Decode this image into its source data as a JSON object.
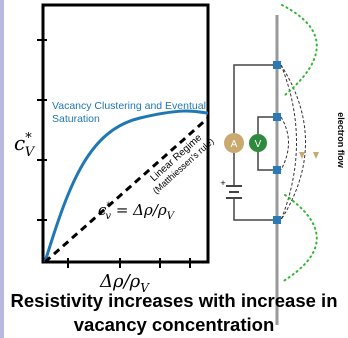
{
  "plot": {
    "y_label": "c",
    "y_label_sup": "*",
    "y_label_sub": "V",
    "x_label": "Δρ/ρ",
    "x_label_sub": "V",
    "saturation_label": [
      "Vacancy Clustering and Eventual",
      "Saturation"
    ],
    "linear_label": [
      "Linear Regime",
      "(Matthiessen's rule)"
    ],
    "equation": {
      "lhs": "c",
      "lhs_sup": "*",
      "lhs_sub": "v",
      "rhs": " = Δρ/ρ",
      "rhs_sub": "V"
    }
  },
  "circuit": {
    "ammeter": "A",
    "voltmeter": "V",
    "battery_plus": "+",
    "flow_label": "electron flow"
  },
  "caption": [
    "Resistivity increases with increase in",
    "vacancy concentration"
  ]
}
